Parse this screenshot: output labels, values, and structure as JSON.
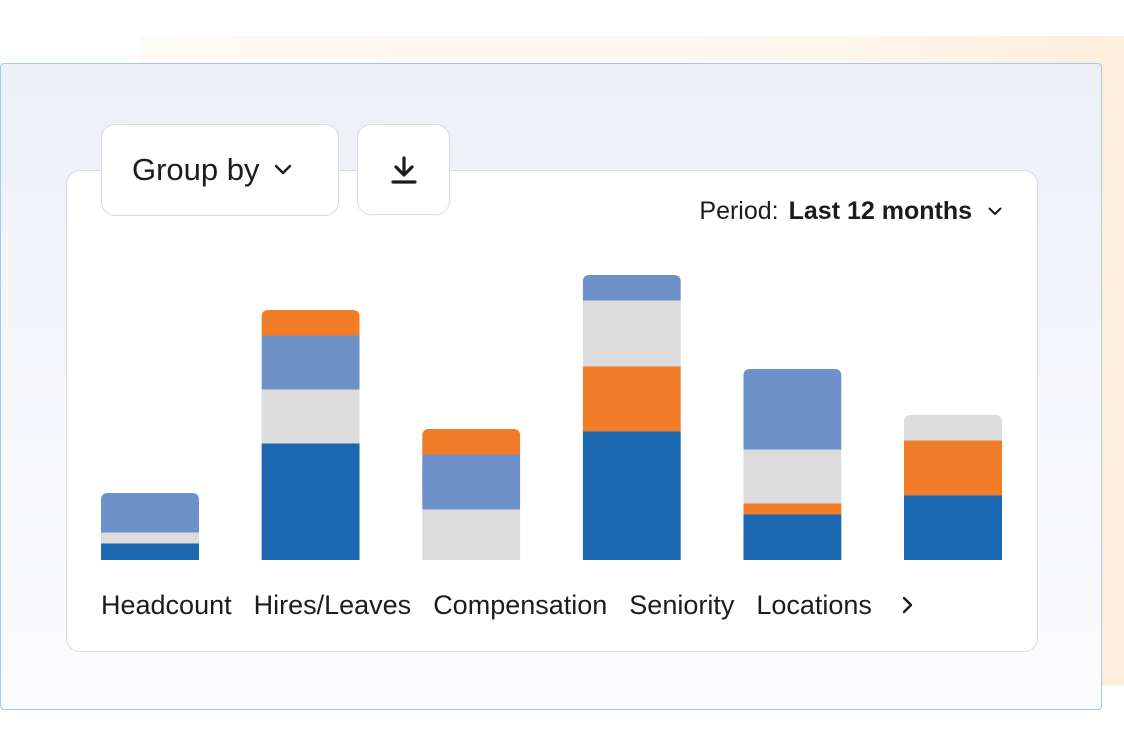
{
  "toolbar": {
    "group_by_label": "Group by",
    "download_icon": "download-icon"
  },
  "period": {
    "label": "Period:",
    "value": "Last 12 months"
  },
  "colors": {
    "dark_blue": "#1b67b0",
    "orange": "#f07c28",
    "light_gray": "#dcdcdc",
    "light_blue": "#6e91c9"
  },
  "chart_data": {
    "type": "bar",
    "stacked": true,
    "categories": [
      "Headcount",
      "Hires/Leaves",
      "Compensation",
      "Seniority",
      "Locations",
      ""
    ],
    "series": [
      {
        "color": "#1b67b0",
        "values": [
          17,
          117,
          0,
          129,
          46,
          65
        ]
      },
      {
        "color": "#f07c28",
        "values": [
          0,
          0,
          0,
          65,
          11,
          55
        ]
      },
      {
        "color": "#dcdcdc",
        "values": [
          11,
          54,
          51,
          66,
          54,
          25
        ]
      },
      {
        "color": "#6e91c9",
        "values": [
          39,
          54,
          55,
          25,
          80,
          0
        ]
      },
      {
        "color": "#f07c28",
        "values": [
          0,
          25,
          25,
          0,
          0,
          0
        ]
      }
    ],
    "ylim": [
      0,
      285
    ],
    "grid": false,
    "legend": "none"
  }
}
